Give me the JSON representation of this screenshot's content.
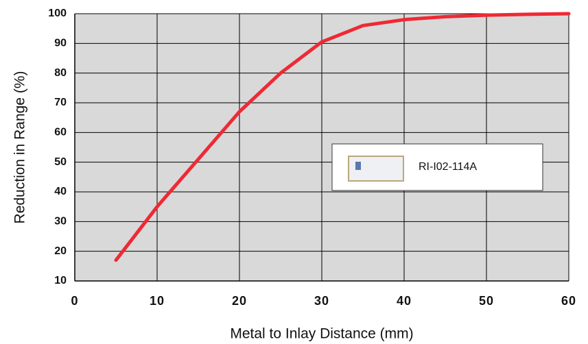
{
  "chart_data": {
    "type": "line",
    "x_label": "Metal to Inlay Distance (mm)",
    "y_label": "Reduction in Range (%)",
    "x": [
      5,
      10,
      15,
      20,
      25,
      30,
      35,
      40,
      45,
      50,
      55,
      60
    ],
    "series": [
      {
        "name": "RI-I02-114A",
        "color": "#ee2a35",
        "values": [
          17,
          35,
          51,
          67,
          80,
          90.5,
          96,
          98,
          99,
          99.5,
          99.8,
          100
        ]
      }
    ],
    "xlim": [
      0,
      60
    ],
    "xticks": [
      0,
      10,
      20,
      30,
      40,
      50,
      60
    ],
    "ylim": [
      10,
      100
    ],
    "yticks": [
      10,
      20,
      30,
      40,
      50,
      60,
      70,
      80,
      90,
      100
    ],
    "grid": true
  }
}
